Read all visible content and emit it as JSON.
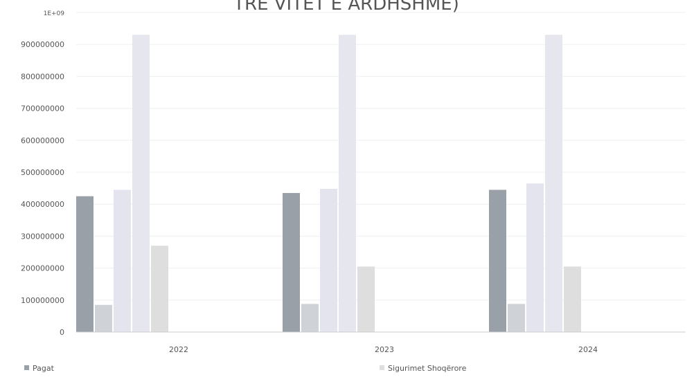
{
  "chart_data": {
    "type": "bar",
    "title": "TRE VITET E ARDHSHME)",
    "categories": [
      "2022",
      "2023",
      "2024"
    ],
    "series": [
      {
        "name": "Pagat",
        "values": [
          425000000,
          435000000,
          445000000
        ]
      },
      {
        "name": "",
        "values": [
          85000000,
          88000000,
          88000000
        ]
      },
      {
        "name": "",
        "values": [
          445000000,
          448000000,
          465000000
        ]
      },
      {
        "name": "",
        "values": [
          930000000,
          930000000,
          930000000
        ]
      },
      {
        "name": "Sigurimet Shoqërore",
        "values": [
          270000000,
          205000000,
          205000000
        ]
      }
    ],
    "yticks": [
      "0",
      "100000000",
      "200000000",
      "300000000",
      "400000000",
      "500000000",
      "600000000",
      "700000000",
      "800000000",
      "900000000",
      "1E+09"
    ],
    "ylim": [
      0,
      1000000000
    ],
    "xlabel": "",
    "ylabel": "",
    "legend": {
      "position": "bottom",
      "entries": [
        "Pagat",
        "Sigurimet Shoqërore"
      ]
    },
    "grid": true,
    "colors": [
      "#9aa0a8",
      "#cfd2d6",
      "#e4e4ee",
      "#e6e6ee",
      "#dedede"
    ]
  }
}
